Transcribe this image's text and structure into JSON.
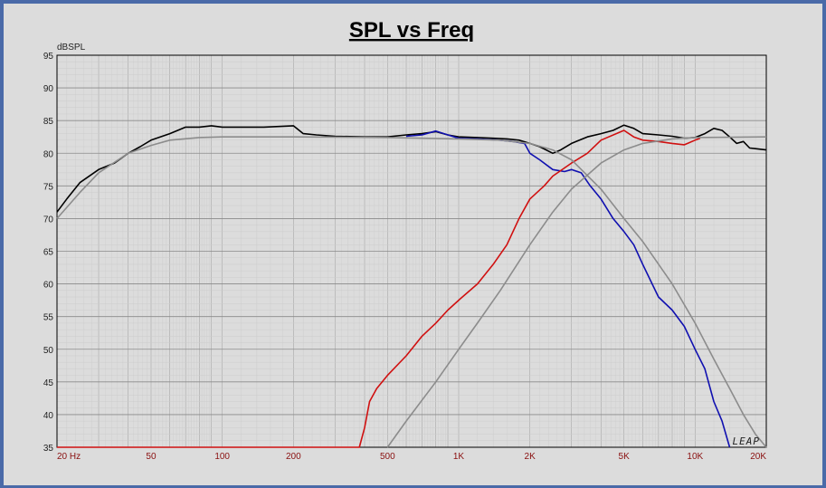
{
  "chart_data": {
    "type": "line",
    "title": "SPL vs Freq",
    "ylabel": "dBSPL",
    "xlabel": "",
    "x_scale": "log",
    "xlim": [
      20,
      20000
    ],
    "ylim": [
      35,
      95
    ],
    "grid": true,
    "legend": "none",
    "watermark": "LEAP",
    "yticks": [
      35,
      40,
      45,
      50,
      55,
      60,
      65,
      70,
      75,
      80,
      85,
      90,
      95
    ],
    "xticks": [
      {
        "value": 20,
        "label": "20  Hz"
      },
      {
        "value": 50,
        "label": "50"
      },
      {
        "value": 100,
        "label": "100"
      },
      {
        "value": 200,
        "label": "200"
      },
      {
        "value": 500,
        "label": "500"
      },
      {
        "value": 1000,
        "label": "1K"
      },
      {
        "value": 2000,
        "label": "2K"
      },
      {
        "value": 5000,
        "label": "5K"
      },
      {
        "value": 10000,
        "label": "10K"
      },
      {
        "value": 20000,
        "label": "20K"
      }
    ],
    "series": [
      {
        "color": "#000000",
        "points": [
          [
            20,
            71
          ],
          [
            22,
            73
          ],
          [
            25,
            75.5
          ],
          [
            30,
            77.5
          ],
          [
            35,
            78.5
          ],
          [
            40,
            80
          ],
          [
            45,
            81
          ],
          [
            50,
            82
          ],
          [
            60,
            83
          ],
          [
            70,
            84
          ],
          [
            80,
            84
          ],
          [
            90,
            84.2
          ],
          [
            100,
            84
          ],
          [
            150,
            84
          ],
          [
            200,
            84.2
          ],
          [
            220,
            83
          ],
          [
            250,
            82.8
          ],
          [
            300,
            82.6
          ],
          [
            400,
            82.5
          ],
          [
            500,
            82.5
          ],
          [
            600,
            82.8
          ],
          [
            700,
            83
          ],
          [
            800,
            83.3
          ],
          [
            900,
            82.8
          ],
          [
            1000,
            82.5
          ],
          [
            1200,
            82.4
          ],
          [
            1400,
            82.3
          ],
          [
            1600,
            82.2
          ],
          [
            1800,
            82
          ],
          [
            2000,
            81.5
          ],
          [
            2200,
            81
          ],
          [
            2500,
            80
          ],
          [
            2700,
            80.5
          ],
          [
            3000,
            81.5
          ],
          [
            3500,
            82.5
          ],
          [
            4000,
            83
          ],
          [
            4500,
            83.5
          ],
          [
            5000,
            84.3
          ],
          [
            5500,
            83.8
          ],
          [
            6000,
            83
          ],
          [
            7000,
            82.8
          ],
          [
            8000,
            82.6
          ],
          [
            9000,
            82.3
          ],
          [
            10000,
            82.4
          ],
          [
            11000,
            83
          ],
          [
            12000,
            83.8
          ],
          [
            13000,
            83.5
          ],
          [
            14000,
            82.5
          ],
          [
            15000,
            81.5
          ],
          [
            16000,
            81.8
          ],
          [
            17000,
            80.8
          ],
          [
            18000,
            80.7
          ],
          [
            20000,
            80.5
          ]
        ]
      },
      {
        "color": "#1010b0",
        "points": [
          [
            600,
            82.6
          ],
          [
            700,
            82.8
          ],
          [
            800,
            83.4
          ],
          [
            900,
            82.8
          ],
          [
            1000,
            82.3
          ],
          [
            1200,
            82.2
          ],
          [
            1500,
            82
          ],
          [
            1700,
            81.8
          ],
          [
            1900,
            81.5
          ],
          [
            2000,
            80
          ],
          [
            2200,
            79
          ],
          [
            2500,
            77.5
          ],
          [
            2800,
            77.2
          ],
          [
            3000,
            77.5
          ],
          [
            3300,
            77
          ],
          [
            3600,
            75
          ],
          [
            4000,
            73
          ],
          [
            4500,
            70
          ],
          [
            5000,
            68
          ],
          [
            5500,
            66
          ],
          [
            6000,
            63
          ],
          [
            7000,
            58
          ],
          [
            8000,
            56
          ],
          [
            9000,
            53.5
          ],
          [
            10000,
            50
          ],
          [
            11000,
            47
          ],
          [
            12000,
            42
          ],
          [
            13000,
            39
          ],
          [
            14000,
            35
          ]
        ]
      },
      {
        "color": "#d01010",
        "points": [
          [
            20,
            35
          ],
          [
            380,
            35
          ],
          [
            400,
            38
          ],
          [
            420,
            42
          ],
          [
            450,
            44
          ],
          [
            500,
            46
          ],
          [
            600,
            49
          ],
          [
            700,
            52
          ],
          [
            800,
            54
          ],
          [
            900,
            56
          ],
          [
            1000,
            57.5
          ],
          [
            1200,
            60
          ],
          [
            1400,
            63
          ],
          [
            1600,
            66
          ],
          [
            1800,
            70
          ],
          [
            2000,
            73
          ],
          [
            2300,
            75
          ],
          [
            2500,
            76.5
          ],
          [
            3000,
            78.5
          ],
          [
            3500,
            80
          ],
          [
            4000,
            82
          ],
          [
            5000,
            83.5
          ],
          [
            5500,
            82.5
          ],
          [
            6000,
            82
          ],
          [
            7000,
            81.8
          ],
          [
            8000,
            81.5
          ],
          [
            9000,
            81.3
          ],
          [
            10000,
            82
          ],
          [
            10500,
            82.3
          ]
        ]
      },
      {
        "color": "#8c8c8c",
        "points": [
          [
            20,
            70
          ],
          [
            25,
            74
          ],
          [
            30,
            77
          ],
          [
            40,
            80
          ],
          [
            50,
            81.2
          ],
          [
            60,
            82
          ],
          [
            80,
            82.4
          ],
          [
            100,
            82.5
          ],
          [
            200,
            82.5
          ],
          [
            500,
            82.4
          ],
          [
            1000,
            82.2
          ],
          [
            1500,
            82
          ],
          [
            2000,
            81.5
          ],
          [
            2500,
            80.5
          ],
          [
            3000,
            79
          ],
          [
            4000,
            74.5
          ],
          [
            5000,
            70
          ],
          [
            6000,
            66.5
          ],
          [
            8000,
            60
          ],
          [
            10000,
            54
          ],
          [
            12000,
            48.5
          ],
          [
            14000,
            44
          ],
          [
            16000,
            40
          ],
          [
            18000,
            37
          ],
          [
            20000,
            35
          ]
        ]
      },
      {
        "color": "#8c8c8c",
        "points": [
          [
            500,
            35
          ],
          [
            600,
            39
          ],
          [
            800,
            45
          ],
          [
            1000,
            50
          ],
          [
            1200,
            54
          ],
          [
            1500,
            59
          ],
          [
            2000,
            66
          ],
          [
            2500,
            71
          ],
          [
            3000,
            74.5
          ],
          [
            4000,
            78.5
          ],
          [
            5000,
            80.5
          ],
          [
            6000,
            81.5
          ],
          [
            8000,
            82.2
          ],
          [
            10000,
            82.4
          ],
          [
            20000,
            82.5
          ]
        ]
      }
    ]
  }
}
